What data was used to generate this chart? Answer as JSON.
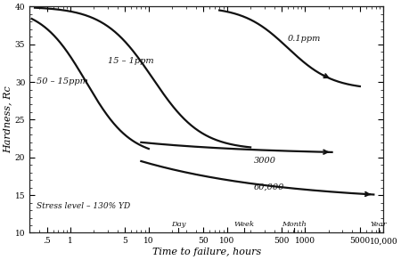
{
  "xlim": [
    0.3,
    10000
  ],
  "ylim": [
    10,
    40
  ],
  "xlabel": "Time to failure, hours",
  "ylabel": "Hardness, Rc",
  "xticks": [
    0.5,
    1,
    5,
    10,
    50,
    100,
    500,
    1000,
    5000,
    10000
  ],
  "xtick_labels": [
    ".5",
    "1",
    "5",
    "10",
    "50",
    "100",
    "500",
    "1000",
    "5000",
    "10,000"
  ],
  "yticks": [
    10,
    15,
    20,
    25,
    30,
    35,
    40
  ],
  "background_color": "#ffffff",
  "curve_color": "#111111",
  "curve_lw": 1.6,
  "label_50_15": "50 – 15ppm",
  "label_15_1": "15 – 1ppm",
  "label_01": "0.1ppm",
  "label_3000": "3000",
  "label_60000": "60,000",
  "label_stress": "Stress level – 130% YD",
  "day_x": 24,
  "week_x": 168,
  "month_x": 730,
  "year_x": 8760,
  "day_label": "Day",
  "week_label": "Week",
  "month_label": "Month",
  "year_label": "Year"
}
